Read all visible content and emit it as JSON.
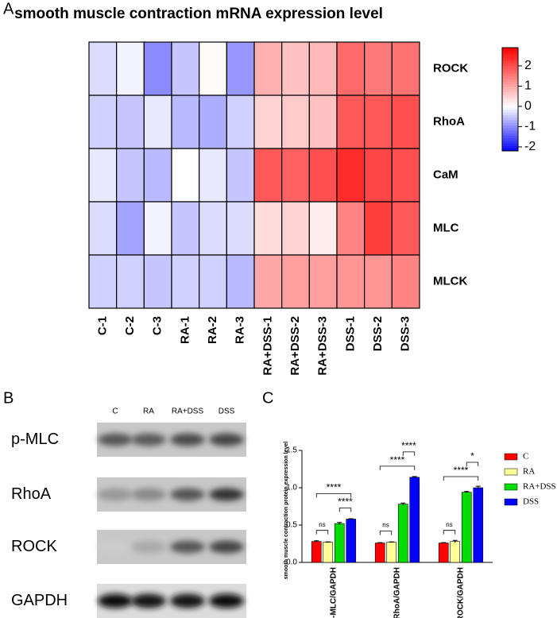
{
  "panel_labels": [
    "A",
    "B",
    "C"
  ],
  "blot": {
    "lanes": [
      "C",
      "RA",
      "RA+DSS",
      "DSS"
    ],
    "proteins": [
      "p-MLC",
      "RhoA",
      "ROCK",
      "GAPDH"
    ]
  },
  "chart_data": [
    {
      "type": "heatmap",
      "title": "smooth muscle contraction mRNA expression level",
      "columns": [
        "C-1",
        "C-2",
        "C-3",
        "RA-1",
        "RA-2",
        "RA-3",
        "RA+DSS-1",
        "RA+DSS-2",
        "RA+DSS-3",
        "DSS-1",
        "DSS-2",
        "DSS-3"
      ],
      "rows": [
        "ROCK",
        "RhoA",
        "CaM",
        "MLC",
        "MLCK"
      ],
      "values": [
        [
          -0.3,
          -0.1,
          -1.0,
          -0.5,
          0.05,
          -0.9,
          0.9,
          0.7,
          0.8,
          1.7,
          1.5,
          1.6
        ],
        [
          -0.4,
          -0.5,
          -0.2,
          -0.6,
          -0.7,
          -0.4,
          0.5,
          0.6,
          0.7,
          1.9,
          1.9,
          2.0
        ],
        [
          -0.2,
          -0.5,
          -0.6,
          0.0,
          -0.2,
          -0.5,
          1.9,
          1.8,
          2.0,
          2.4,
          2.1,
          2.0
        ],
        [
          -0.3,
          -0.8,
          -0.1,
          -0.5,
          -0.3,
          -0.3,
          0.4,
          0.5,
          0.2,
          1.4,
          2.2,
          1.9
        ],
        [
          -0.4,
          -0.4,
          -0.5,
          -0.4,
          -0.4,
          -0.6,
          1.0,
          1.1,
          1.1,
          1.2,
          1.2,
          1.4
        ]
      ],
      "zlim": [
        -2.2,
        2.9
      ],
      "zticks": [
        2,
        1,
        0,
        -1,
        -2
      ],
      "colormap": [
        "#0000ff",
        "#ffffff",
        "#ff0000"
      ]
    },
    {
      "type": "bar",
      "ylabel": "smooth muscle contraction protein expression level",
      "categories": [
        "p-MLC/GAPDH",
        "RhoA/GAPDH",
        "ROCK/GAPDH"
      ],
      "series": [
        {
          "name": "C",
          "color": "#ff0000",
          "values": [
            0.28,
            0.26,
            0.26
          ],
          "errors": [
            0.01,
            0.005,
            0.005
          ]
        },
        {
          "name": "RA",
          "color": "#ffff99",
          "values": [
            0.27,
            0.27,
            0.28
          ],
          "errors": [
            0.005,
            0.005,
            0.015
          ]
        },
        {
          "name": "RA+DSS",
          "color": "#00dd00",
          "values": [
            0.52,
            0.78,
            0.94
          ],
          "errors": [
            0.015,
            0.015,
            0.01
          ]
        },
        {
          "name": "DSS",
          "color": "#0000ff",
          "values": [
            0.58,
            1.14,
            1.0
          ],
          "errors": [
            0.005,
            0.01,
            0.02
          ]
        }
      ],
      "ylim": [
        0,
        1.5
      ],
      "yticks": [
        {
          "value": 0,
          "label": "0.0"
        },
        {
          "value": 0.5,
          "label": "0.5"
        },
        {
          "value": 1,
          "label": "1.0"
        },
        {
          "value": 1.5,
          "label": "1.5"
        }
      ],
      "annotations": [
        {
          "label": "ns",
          "category": "p-MLC/GAPDH",
          "between": [
            "C",
            "RA"
          ]
        },
        {
          "label": "****",
          "category": "p-MLC/GAPDH",
          "between": [
            "RA+DSS",
            "DSS"
          ]
        },
        {
          "label": "****",
          "category": "p-MLC/GAPDH",
          "between": [
            "C",
            "DSS"
          ]
        },
        {
          "label": "ns",
          "category": "RhoA/GAPDH",
          "between": [
            "C",
            "RA"
          ]
        },
        {
          "label": "****",
          "category": "RhoA/GAPDH",
          "between": [
            "C",
            "DSS"
          ]
        },
        {
          "label": "****",
          "category": "RhoA/GAPDH",
          "between": [
            "RA+DSS",
            "DSS"
          ]
        },
        {
          "label": "ns",
          "category": "ROCK/GAPDH",
          "between": [
            "C",
            "RA"
          ]
        },
        {
          "label": "****",
          "category": "ROCK/GAPDH",
          "between": [
            "C",
            "DSS"
          ]
        },
        {
          "label": "*",
          "category": "ROCK/GAPDH",
          "between": [
            "RA+DSS",
            "DSS"
          ]
        }
      ],
      "legend": "right"
    }
  ]
}
